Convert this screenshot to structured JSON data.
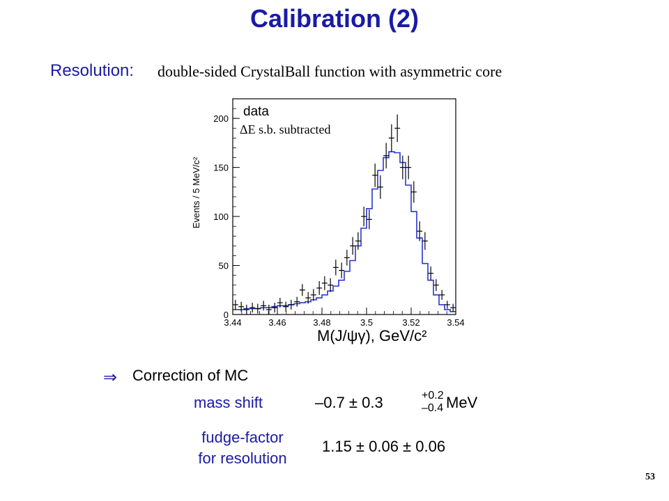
{
  "slide": {
    "title": "Calibration (2)",
    "resolution_label": "Resolution:",
    "resolution_text": "double-sided CrystalBall function with asymmetric core",
    "arrow_symbol": "⇒",
    "correction_text": "Correction of MC",
    "mass_shift_label": "mass shift",
    "mass_shift_value": "–0.7 ± 0.3",
    "mass_shift_plus": "+0.2",
    "mass_shift_minus": "–0.4",
    "mass_shift_unit": "MeV",
    "fudge_line1": "fudge-factor",
    "fudge_line2": "for resolution",
    "fudge_value": "1.15 ± 0.06 ± 0.06",
    "page_number": "53",
    "accent_color": "#1a1aa6"
  },
  "chart_data": {
    "type": "histogram",
    "ylabel": "Events / 5 MeV/c²",
    "xlabel": "M(J/ψγ), GeV/c²",
    "legend_title": "data",
    "annotation": "ΔE s.b. subtracted",
    "xlim": [
      3.44,
      3.54
    ],
    "ylim": [
      0,
      220
    ],
    "x_ticks": [
      3.44,
      3.46,
      3.48,
      3.5,
      3.52,
      3.54
    ],
    "x_tick_labels": [
      "3.44",
      "3.46",
      "3.48",
      "3.5",
      "3.52",
      "3.54"
    ],
    "y_ticks": [
      0,
      50,
      100,
      150,
      200
    ],
    "y_tick_labels": [
      "0",
      "50",
      "100",
      "150",
      "200"
    ],
    "grid": false,
    "fit_color": "#2a35d0",
    "fit_bin_edges": [
      3.44,
      3.4425,
      3.445,
      3.4475,
      3.45,
      3.4525,
      3.455,
      3.4575,
      3.46,
      3.4625,
      3.465,
      3.4675,
      3.47,
      3.4725,
      3.475,
      3.4775,
      3.48,
      3.4825,
      3.485,
      3.4875,
      3.49,
      3.4925,
      3.495,
      3.4975,
      3.5,
      3.5025,
      3.505,
      3.5075,
      3.51,
      3.5125,
      3.515,
      3.5175,
      3.52,
      3.5225,
      3.525,
      3.5275,
      3.53,
      3.5325,
      3.535,
      3.5375,
      3.54
    ],
    "fit_values": [
      5,
      5,
      6,
      6,
      6,
      7,
      7,
      8,
      9,
      9,
      10,
      11,
      12,
      13,
      15,
      17,
      20,
      24,
      29,
      35,
      44,
      55,
      70,
      88,
      108,
      128,
      147,
      160,
      166,
      165,
      155,
      132,
      105,
      78,
      52,
      35,
      20,
      10,
      5,
      3
    ],
    "points": [
      {
        "x": 3.4412,
        "y": 10,
        "err": 5
      },
      {
        "x": 3.4438,
        "y": 8,
        "err": 5
      },
      {
        "x": 3.4462,
        "y": 5,
        "err": 5
      },
      {
        "x": 3.4488,
        "y": 7,
        "err": 5
      },
      {
        "x": 3.4512,
        "y": 6,
        "err": 5
      },
      {
        "x": 3.4538,
        "y": 9,
        "err": 5
      },
      {
        "x": 3.4562,
        "y": 5,
        "err": 5
      },
      {
        "x": 3.4588,
        "y": 7,
        "err": 5
      },
      {
        "x": 3.4612,
        "y": 12,
        "err": 5
      },
      {
        "x": 3.4638,
        "y": 8,
        "err": 5
      },
      {
        "x": 3.4662,
        "y": 10,
        "err": 5
      },
      {
        "x": 3.4688,
        "y": 13,
        "err": 5
      },
      {
        "x": 3.4712,
        "y": 25,
        "err": 6
      },
      {
        "x": 3.4738,
        "y": 17,
        "err": 6
      },
      {
        "x": 3.4762,
        "y": 20,
        "err": 6
      },
      {
        "x": 3.4788,
        "y": 27,
        "err": 7
      },
      {
        "x": 3.4812,
        "y": 32,
        "err": 7
      },
      {
        "x": 3.4838,
        "y": 30,
        "err": 7
      },
      {
        "x": 3.4862,
        "y": 48,
        "err": 8
      },
      {
        "x": 3.4888,
        "y": 45,
        "err": 8
      },
      {
        "x": 3.4912,
        "y": 58,
        "err": 8
      },
      {
        "x": 3.4938,
        "y": 70,
        "err": 9
      },
      {
        "x": 3.4962,
        "y": 75,
        "err": 9
      },
      {
        "x": 3.4988,
        "y": 100,
        "err": 10
      },
      {
        "x": 3.5012,
        "y": 97,
        "err": 10
      },
      {
        "x": 3.5038,
        "y": 142,
        "err": 12
      },
      {
        "x": 3.5062,
        "y": 130,
        "err": 12
      },
      {
        "x": 3.5088,
        "y": 162,
        "err": 13
      },
      {
        "x": 3.5112,
        "y": 180,
        "err": 14
      },
      {
        "x": 3.5138,
        "y": 190,
        "err": 14
      },
      {
        "x": 3.5162,
        "y": 150,
        "err": 12
      },
      {
        "x": 3.5188,
        "y": 150,
        "err": 12
      },
      {
        "x": 3.5212,
        "y": 125,
        "err": 11
      },
      {
        "x": 3.5238,
        "y": 85,
        "err": 10
      },
      {
        "x": 3.5262,
        "y": 75,
        "err": 9
      },
      {
        "x": 3.5288,
        "y": 42,
        "err": 7
      },
      {
        "x": 3.5312,
        "y": 30,
        "err": 6
      },
      {
        "x": 3.5338,
        "y": 20,
        "err": 5
      },
      {
        "x": 3.5362,
        "y": 10,
        "err": 4
      },
      {
        "x": 3.5388,
        "y": 7,
        "err": 4
      }
    ]
  }
}
